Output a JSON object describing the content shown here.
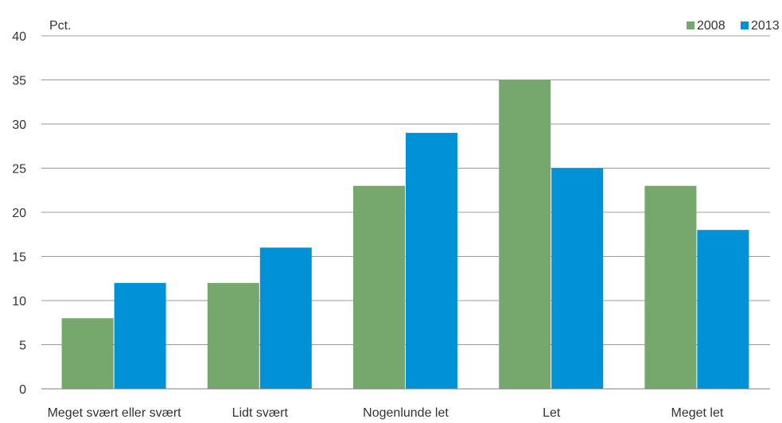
{
  "chart_data": {
    "type": "bar",
    "unit_label": "Pct.",
    "categories": [
      "Meget svært eller svært",
      "Lidt svært",
      "Nogenlunde let",
      "Let",
      "Meget let"
    ],
    "series": [
      {
        "name": "2008",
        "color": "#76A86E",
        "values": [
          8,
          12,
          23,
          35,
          23
        ]
      },
      {
        "name": "2013",
        "color": "#0091D6",
        "values": [
          12,
          16,
          29,
          25,
          18
        ]
      }
    ],
    "ylim": [
      0,
      40
    ],
    "yticks": [
      0,
      5,
      10,
      15,
      20,
      25,
      30,
      35,
      40
    ],
    "grid": true,
    "legend_position": "top-right",
    "xlabel": "",
    "ylabel": ""
  }
}
